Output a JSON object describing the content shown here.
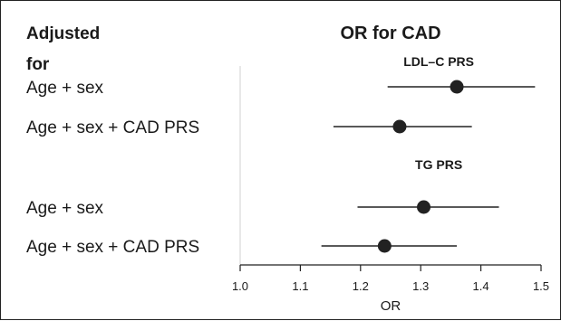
{
  "header": {
    "left_title_line1": "Adjusted",
    "left_title_line2": "for",
    "chart_title": "OR for CAD"
  },
  "chart_data": {
    "type": "forest",
    "title": "OR for CAD",
    "xlabel": "OR",
    "ylabel": "",
    "xlim": [
      1.0,
      1.5
    ],
    "x_ticks": [
      1.0,
      1.1,
      1.2,
      1.3,
      1.4,
      1.5
    ],
    "x_tick_labels": [
      "1.0",
      "1.1",
      "1.2",
      "1.3",
      "1.4",
      "1.5"
    ],
    "reference_line": 1.0,
    "grid": false,
    "groups": [
      {
        "name": "LDL–C PRS",
        "rows": [
          {
            "label": "Age + sex",
            "estimate": 1.36,
            "ci_low": 1.245,
            "ci_high": 1.49
          },
          {
            "label": "Age + sex + CAD PRS",
            "estimate": 1.265,
            "ci_low": 1.155,
            "ci_high": 1.385
          }
        ]
      },
      {
        "name": "TG PRS",
        "rows": [
          {
            "label": "Age + sex",
            "estimate": 1.305,
            "ci_low": 1.195,
            "ci_high": 1.43
          },
          {
            "label": "Age + sex + CAD PRS",
            "estimate": 1.24,
            "ci_low": 1.135,
            "ci_high": 1.36
          }
        ]
      }
    ],
    "colors": {
      "marker": "#222222",
      "line": "#222222",
      "reference": "#d0d0d0",
      "axis": "#222222"
    }
  }
}
